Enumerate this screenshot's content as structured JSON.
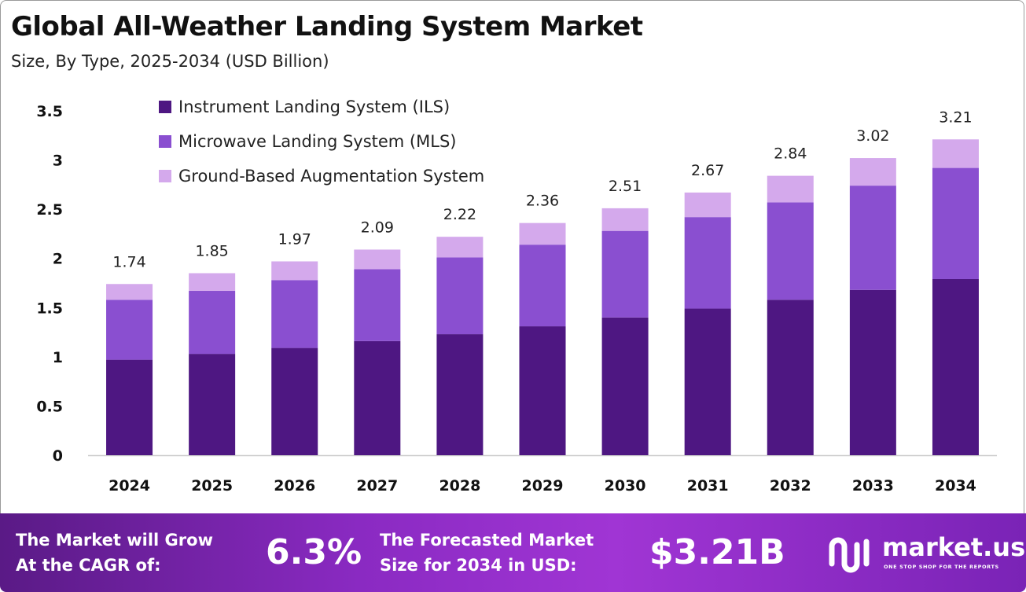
{
  "title": "Global All-Weather Landing System Market",
  "subtitle": "Size, By Type, 2025-2034 (USD Billion)",
  "chart_data": {
    "type": "bar",
    "stacked": true,
    "categories": [
      "2024",
      "2025",
      "2026",
      "2027",
      "2028",
      "2029",
      "2030",
      "2031",
      "2032",
      "2033",
      "2034"
    ],
    "series": [
      {
        "name": "Instrument Landing System (ILS)",
        "color": "#4e1782",
        "values": [
          0.97,
          1.03,
          1.09,
          1.16,
          1.23,
          1.31,
          1.4,
          1.49,
          1.58,
          1.68,
          1.79
        ]
      },
      {
        "name": "Microwave Landing System (MLS)",
        "color": "#8a4fd0",
        "values": [
          0.61,
          0.64,
          0.69,
          0.73,
          0.78,
          0.83,
          0.88,
          0.93,
          0.99,
          1.06,
          1.13
        ]
      },
      {
        "name": "Ground-Based Augmentation System",
        "color": "#d4a9ec",
        "values": [
          0.16,
          0.18,
          0.19,
          0.2,
          0.21,
          0.22,
          0.23,
          0.25,
          0.27,
          0.28,
          0.29
        ]
      }
    ],
    "totals": [
      1.74,
      1.85,
      1.97,
      2.09,
      2.22,
      2.36,
      2.51,
      2.67,
      2.84,
      3.02,
      3.21
    ],
    "total_labels": [
      "1.74",
      "1.85",
      "1.97",
      "2.09",
      "2.22",
      "2.36",
      "2.51",
      "2.67",
      "2.84",
      "3.02",
      "3.21"
    ],
    "yticks": [
      "0",
      "0.5",
      "1",
      "1.5",
      "2",
      "2.5",
      "3",
      "3.5"
    ],
    "ylim": [
      0,
      3.5
    ],
    "grid": false,
    "legend_position": "top-left"
  },
  "footer": {
    "cagr_label_line1": "The Market will Grow",
    "cagr_label_line2": "At the CAGR of:",
    "cagr_value": "6.3%",
    "forecast_label_line1": "The Forecasted Market",
    "forecast_label_line2": "Size for 2034 in USD:",
    "forecast_value": "$3.21B",
    "brand_name": "market.us",
    "brand_tagline": "ONE STOP SHOP FOR THE REPORTS"
  },
  "colors": {
    "footer_start": "#5a1a86",
    "footer_end": "#a035d4",
    "text_dark": "#111111"
  }
}
